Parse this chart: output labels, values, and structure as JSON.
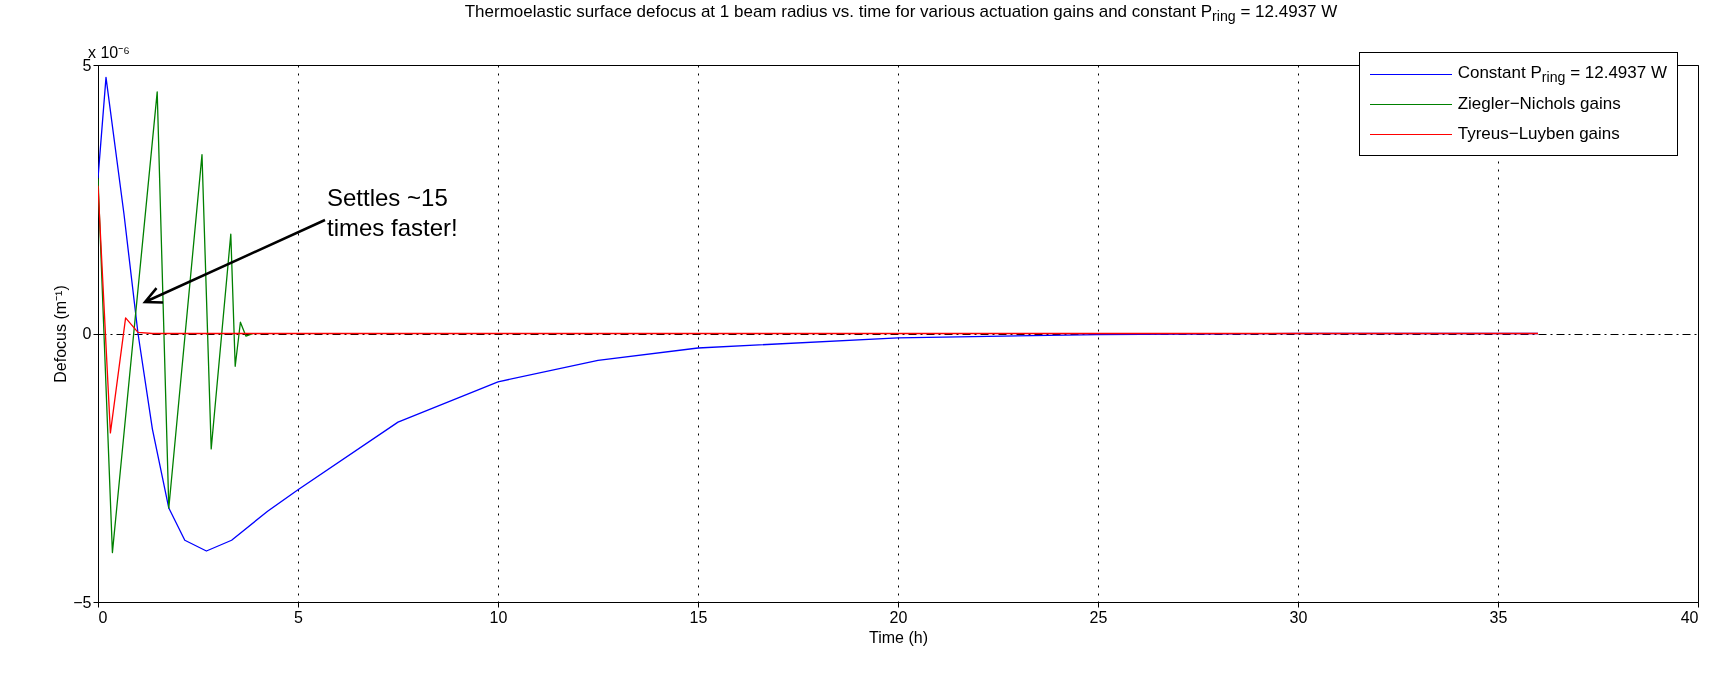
{
  "chart_data": {
    "type": "line",
    "title": "Thermoelastic surface defocus at 1 beam radius vs. time for various actuation gains and constant P$_{ring}$ = 12.4937 W",
    "xlabel": "Time (h)",
    "ylabel": "Defocus (m⁻¹)",
    "xlim": [
      0,
      40
    ],
    "ylim": [
      -5,
      5
    ],
    "xticks": [
      0,
      5,
      10,
      15,
      20,
      25,
      30,
      35,
      40
    ],
    "yticks": [
      -5,
      0,
      5
    ],
    "grid": true,
    "legend": "top right",
    "line_style": "solid",
    "annotations": [
      "x 10⁻⁶",
      "Settles ~15\ntimes faster!"
    ],
    "series": [
      {
        "name": "Constant P$_{ring}$ = 12.4937 W",
        "color": "#0000ff",
        "x": [
          0,
          0.2,
          0.65,
          1.0,
          1.36,
          1.77,
          2.17,
          2.71,
          3.34,
          4.24,
          5,
          7.5,
          10,
          12.5,
          15,
          20,
          25,
          30,
          36
        ],
        "values": [
          2.89,
          4.77,
          2.22,
          0,
          -1.78,
          -3.25,
          -3.85,
          -4.05,
          -3.85,
          -3.31,
          -2.91,
          -1.65,
          -0.9,
          -0.5,
          -0.27,
          -0.08,
          -0.02,
          0,
          0
        ]
      },
      {
        "name": "Ziegler−Nichols gains",
        "color": "#008000",
        "x": [
          0,
          0.36,
          1.48,
          1.77,
          2.6,
          2.83,
          3.32,
          3.43,
          3.56,
          3.7,
          3.88
        ],
        "values": [
          2.89,
          -4.08,
          4.5,
          -3.25,
          3.33,
          -2.15,
          1.85,
          -0.61,
          0.21,
          -0.05,
          0
        ]
      },
      {
        "name": "Tyreus−Luyben   gains",
        "color": "#ff0000",
        "x": [
          0,
          0.31,
          0.69,
          1.0,
          1.36,
          10,
          20,
          36
        ],
        "values": [
          2.75,
          -1.85,
          0.29,
          0.02,
          0,
          0,
          0,
          0
        ]
      }
    ]
  }
}
